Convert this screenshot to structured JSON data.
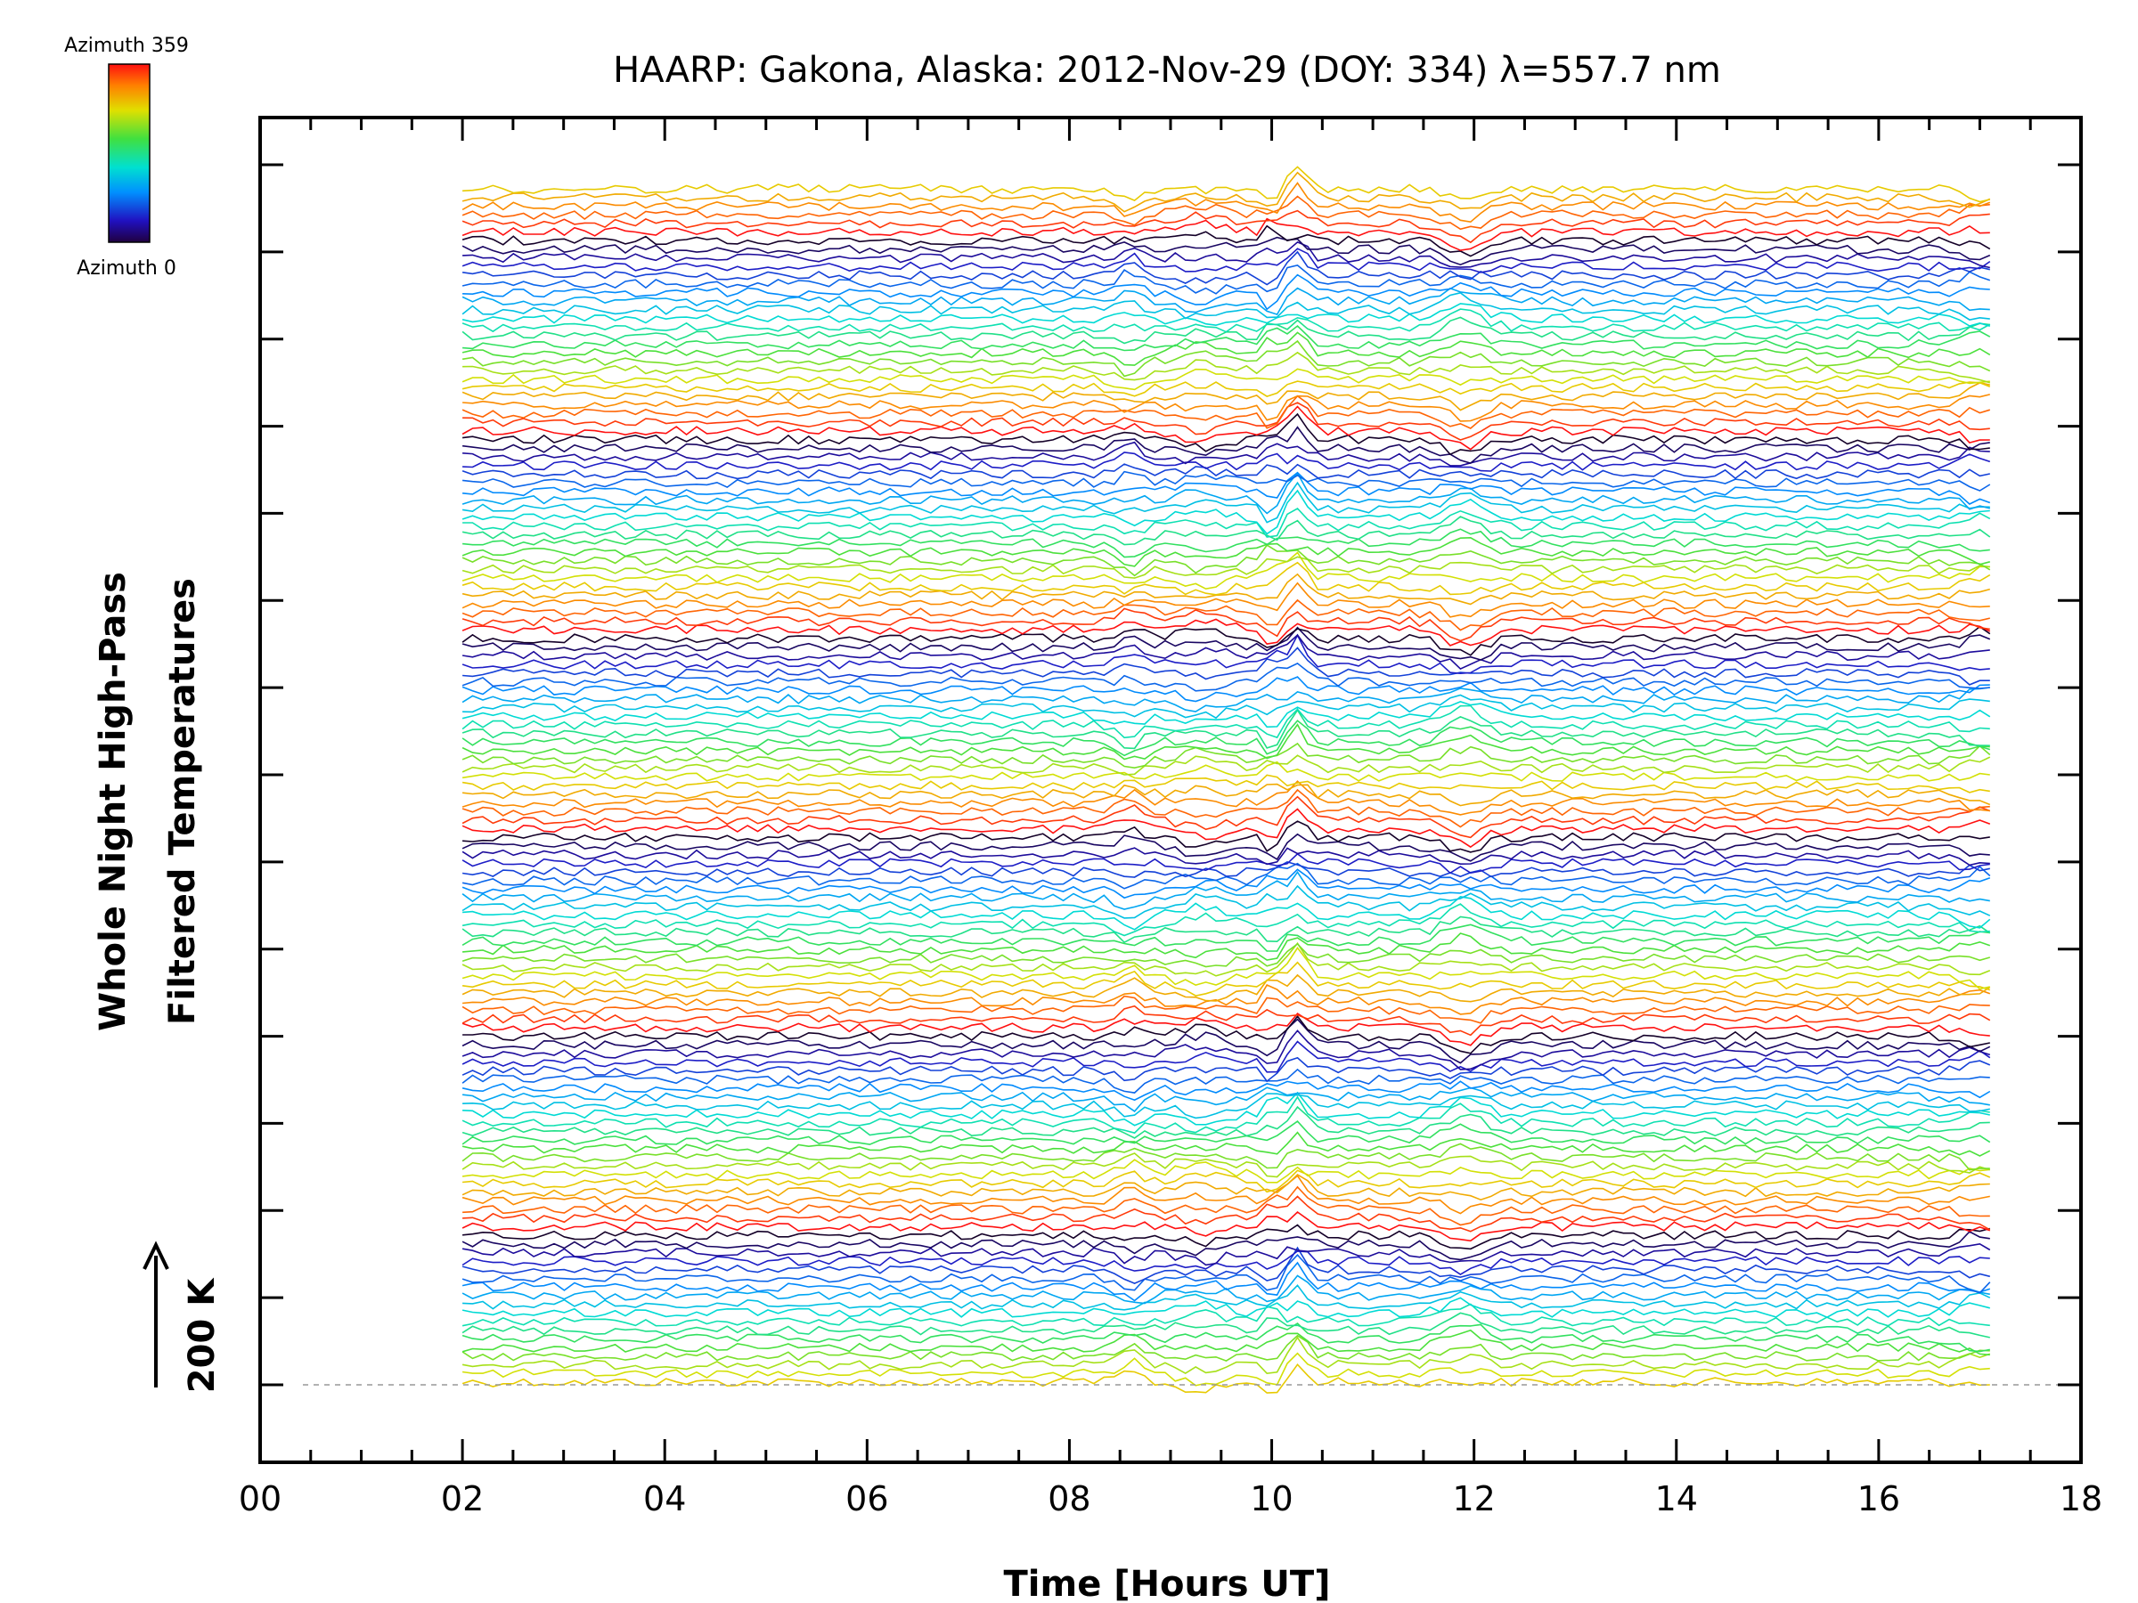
{
  "chart_data": {
    "type": "line",
    "title": "HAARP: Gakona,  Alaska: 2012-Nov-29 (DOY: 334) λ=557.7 nm",
    "xlabel": "Time [Hours UT]",
    "ylabel_line1": "Whole Night High-Pass",
    "ylabel_line2": "Filtered Temperatures",
    "xlim": [
      0,
      18
    ],
    "x_ticks": [
      "00",
      "02",
      "04",
      "06",
      "08",
      "10",
      "12",
      "14",
      "16",
      "18"
    ],
    "scale_bar_label": "200 K",
    "colorbar": {
      "top_label": "Azimuth 359",
      "bottom_label": "Azimuth 0",
      "azimuth_range": [
        0,
        359
      ]
    },
    "x_start": 2.0,
    "x_end": 17.1,
    "num_traces": 139,
    "notes": "Stacked traces of high-pass filtered temperature, one per azimuth, colored by azimuth (0 = dark blue, 359 = red), repeating through the azimuth cycle several times. Common disturbance near 10.2 UT and around 8.6 and 11.9 UT."
  }
}
